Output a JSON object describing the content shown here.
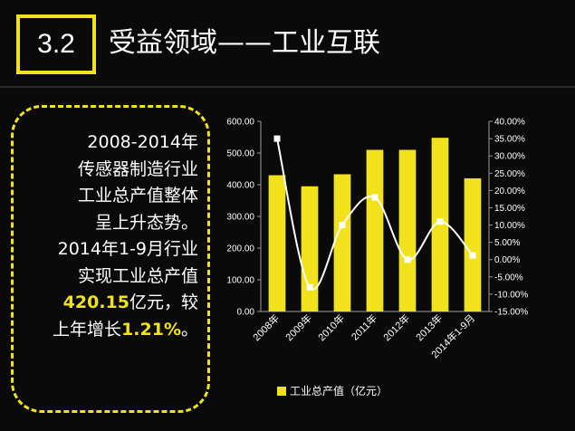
{
  "header": {
    "section_number": "3.2",
    "title": "受益领域——工业互联"
  },
  "note": {
    "line1": "2008-2014年",
    "line2": "传感器制造行业",
    "line3": "工业总产值整体",
    "line4": "呈上升态势。",
    "line5": "2014年1-9月行业",
    "line6": "实现工业总产值",
    "highlight_value": "420.15",
    "line7_suffix": "亿元，较",
    "line8_prefix": "上年增长",
    "highlight_growth": "1.21%",
    "line8_suffix": "。"
  },
  "colors": {
    "accent": "#f2e21d",
    "background": "#0a0a0a",
    "text": "#ffffff"
  },
  "chart_data": {
    "type": "bar+line",
    "categories": [
      "2008年",
      "2009年",
      "2010年",
      "2011年",
      "2012年",
      "2013年",
      "2014年1-9月"
    ],
    "series": [
      {
        "name": "工业总产值（亿元）",
        "type": "bar",
        "axis": "left",
        "color": "#f2e21d",
        "values": [
          430,
          395,
          433,
          510,
          510,
          548,
          420.15
        ]
      },
      {
        "type": "line",
        "axis": "right",
        "color": "#ffffff",
        "values": [
          35,
          -8,
          10,
          18,
          0,
          11,
          1.21
        ]
      }
    ],
    "y_left": {
      "ylim": [
        0,
        600
      ],
      "ticks": [
        "0.00",
        "100.00",
        "200.00",
        "300.00",
        "400.00",
        "500.00",
        "600.00"
      ]
    },
    "y_right": {
      "ylim": [
        -15,
        40
      ],
      "ticks": [
        "-15.00%",
        "-10.00%",
        "-5.00%",
        "0.00%",
        "5.00%",
        "10.00%",
        "15.00%",
        "20.00%",
        "25.00%",
        "30.00%",
        "35.00%",
        "40.00%"
      ]
    },
    "legend": {
      "label": "工业总产值（亿元）",
      "position": "bottom"
    },
    "grid": false
  }
}
